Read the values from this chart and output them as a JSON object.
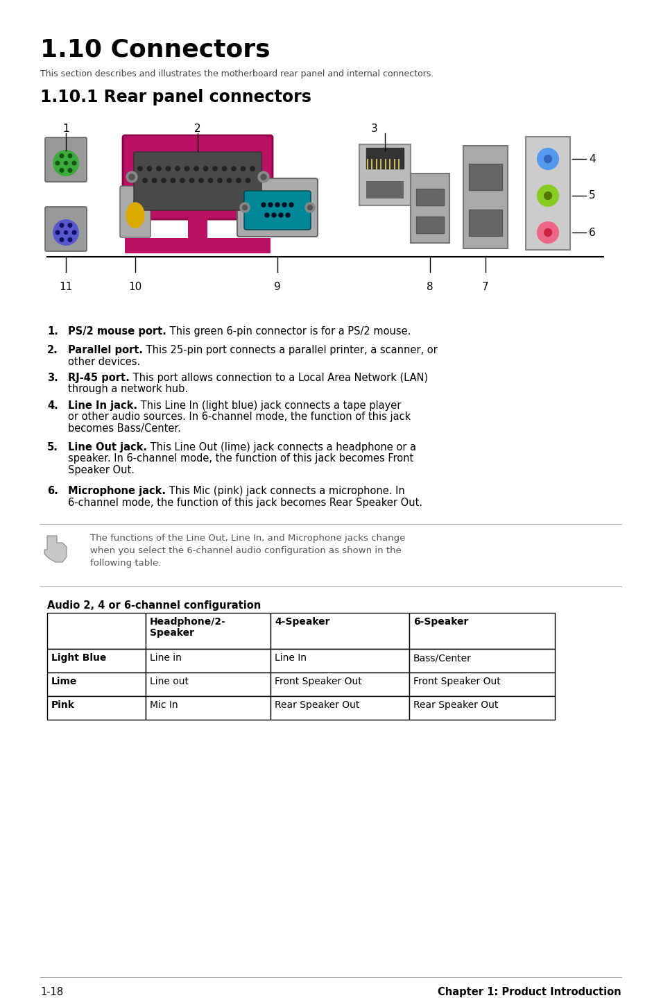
{
  "title": "1.10 Connectors",
  "subtitle": "This section describes and illustrates the motherboard rear panel and internal connectors.",
  "section_title": "1.10.1 Rear panel connectors",
  "items": [
    {
      "num": "1.",
      "bold": "PS/2 mouse port.",
      "rest": " This green 6-pin connector is for a PS/2 mouse."
    },
    {
      "num": "2.",
      "bold": "Parallel port.",
      "rest": " This 25-pin port connects a parallel printer, a scanner, or\n      other devices."
    },
    {
      "num": "3.",
      "bold": "RJ-45 port.",
      "rest": " This port allows connection to a Local Area Network (LAN)\n      through a network hub."
    },
    {
      "num": "4.",
      "bold": "Line In jack.",
      "rest": " This Line In (light blue) jack connects a tape player\n      or other audio sources. In 6-channel mode, the function of this jack\n      becomes Bass/Center."
    },
    {
      "num": "5.",
      "bold": "Line Out jack.",
      "rest": " This Line Out (lime) jack connects a headphone or a\n      speaker. In 6-channel mode, the function of this jack becomes Front\n      Speaker Out."
    },
    {
      "num": "6.",
      "bold": "Microphone jack.",
      "rest": " This Mic (pink) jack connects a microphone. In\n      6-channel mode, the function of this jack becomes Rear Speaker Out."
    }
  ],
  "note_text": "The functions of the Line Out, Line In, and Microphone jacks change\nwhen you select the 6-channel audio configuration as shown in the\nfollowing table.",
  "table_caption": "Audio 2, 4 or 6-channel configuration",
  "table_headers": [
    "",
    "Headphone/2-\nSpeaker",
    "4-Speaker",
    "6-Speaker"
  ],
  "table_rows": [
    [
      "Light Blue",
      "Line in",
      "Line In",
      "Bass/Center"
    ],
    [
      "Lime",
      "Line out",
      "Front Speaker Out",
      "Front Speaker Out"
    ],
    [
      "Pink",
      "Mic In",
      "Rear Speaker Out",
      "Rear Speaker Out"
    ]
  ],
  "footer_left": "1-18",
  "footer_right": "Chapter 1: Product Introduction"
}
